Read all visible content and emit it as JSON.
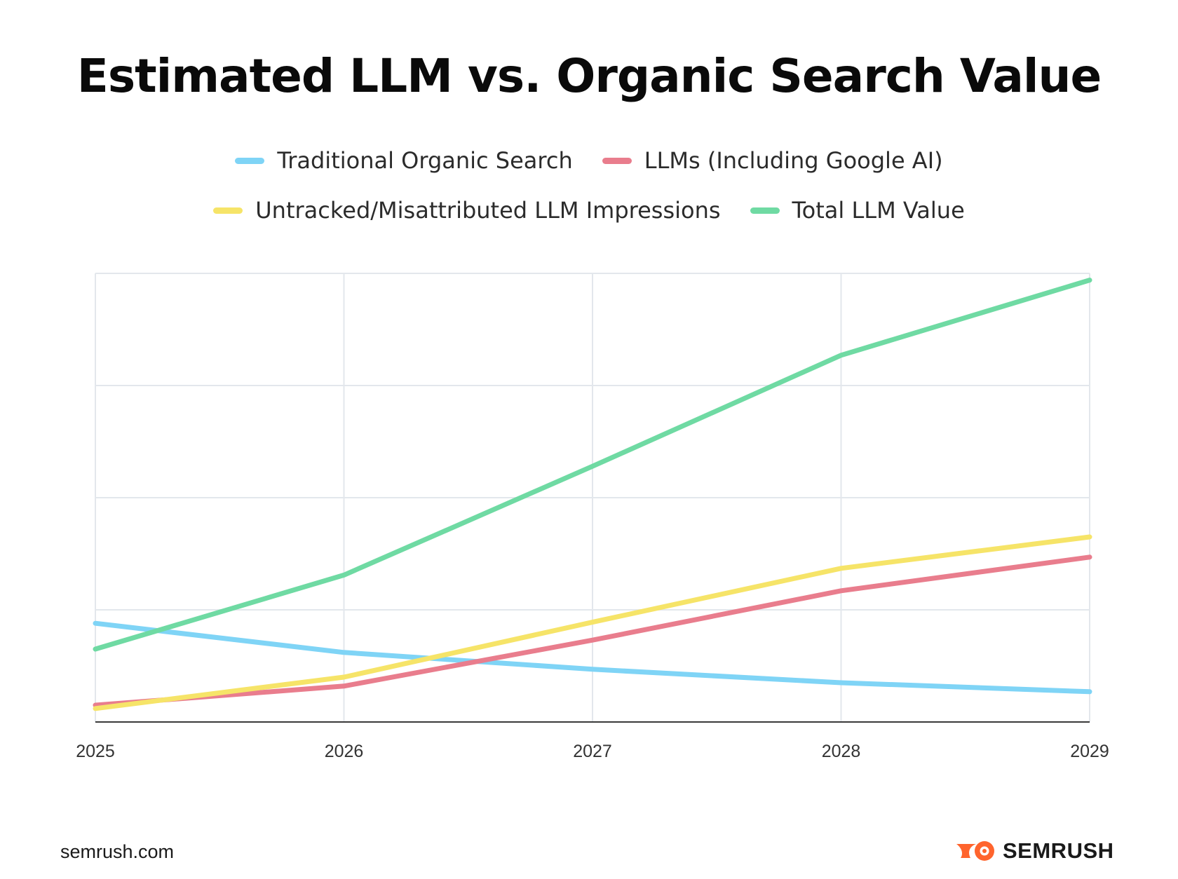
{
  "colors": {
    "traditional": "#7fd4f6",
    "llms": "#e97d8d",
    "untracked": "#f6e468",
    "total": "#6fdaa3",
    "grid": "#e3e7ec",
    "axis": "#3a3a3a",
    "brand": "#ff642d"
  },
  "chart_data": {
    "type": "line",
    "title": "Estimated LLM vs. Organic Search Value",
    "xlabel": "",
    "ylabel": "",
    "x": [
      "2025",
      "2026",
      "2027",
      "2028",
      "2029"
    ],
    "ylim": [
      0,
      4
    ],
    "y_ticks_labeled": false,
    "grid": "on",
    "legend_position": "top",
    "series": [
      {
        "name": "Traditional Organic Search",
        "color": "traditional",
        "values": [
          0.88,
          0.62,
          0.47,
          0.35,
          0.27
        ]
      },
      {
        "name": "LLMs (Including Google AI)",
        "color": "llms",
        "values": [
          0.15,
          0.32,
          0.73,
          1.17,
          1.47
        ]
      },
      {
        "name": "Untracked/Misattributed LLM Impressions",
        "color": "untracked",
        "values": [
          0.12,
          0.4,
          0.89,
          1.37,
          1.65
        ]
      },
      {
        "name": "Total LLM Value",
        "color": "total",
        "values": [
          0.65,
          1.31,
          2.28,
          3.27,
          3.94
        ]
      }
    ]
  },
  "footer": {
    "source": "semrush.com",
    "brand": "SEMRUSH"
  }
}
